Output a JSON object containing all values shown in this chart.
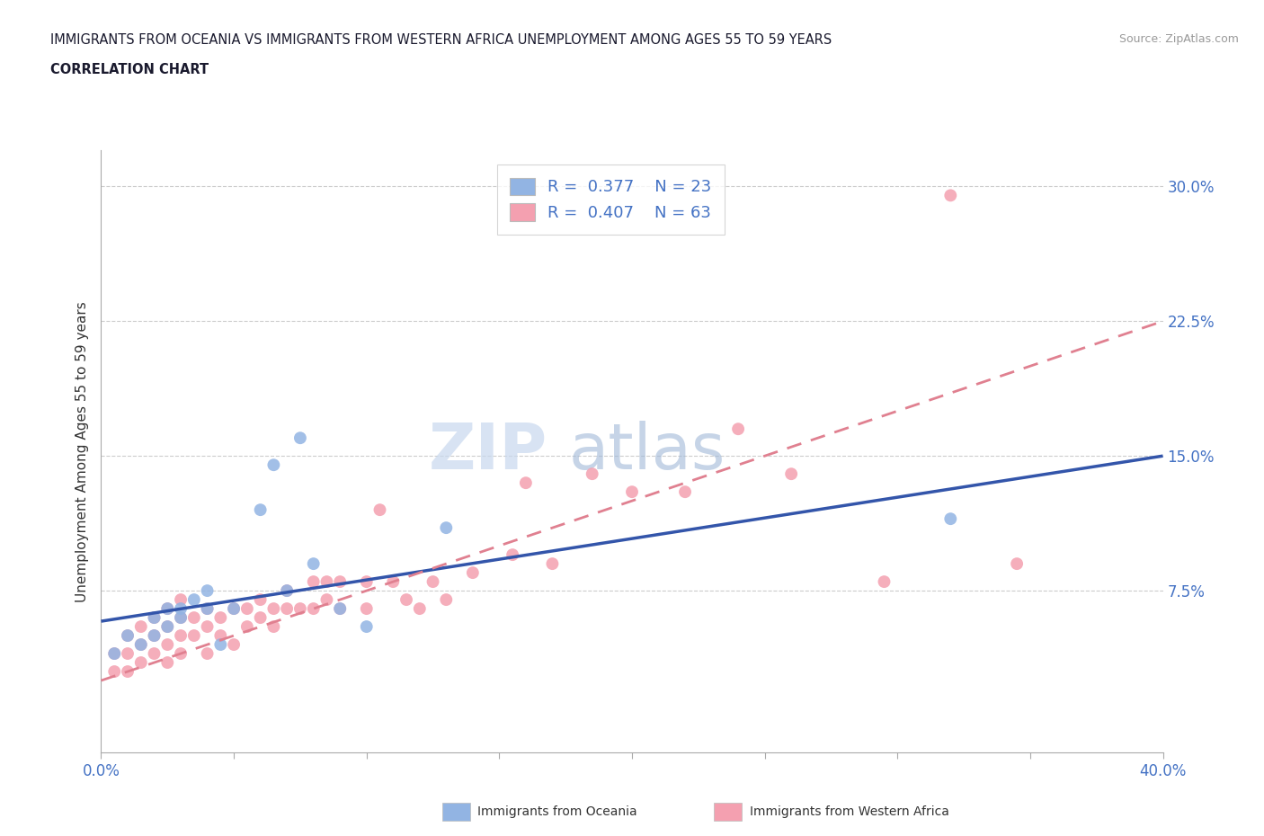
{
  "title_line1": "IMMIGRANTS FROM OCEANIA VS IMMIGRANTS FROM WESTERN AFRICA UNEMPLOYMENT AMONG AGES 55 TO 59 YEARS",
  "title_line2": "CORRELATION CHART",
  "source": "Source: ZipAtlas.com",
  "ylabel": "Unemployment Among Ages 55 to 59 years",
  "xlim": [
    0.0,
    0.4
  ],
  "ylim": [
    -0.015,
    0.32
  ],
  "yticks": [
    0.075,
    0.15,
    0.225,
    0.3
  ],
  "ytick_labels": [
    "7.5%",
    "15.0%",
    "22.5%",
    "30.0%"
  ],
  "xticks": [
    0.0,
    0.05,
    0.1,
    0.15,
    0.2,
    0.25,
    0.3,
    0.35,
    0.4
  ],
  "xtick_labels": [
    "0.0%",
    "",
    "",
    "",
    "",
    "",
    "",
    "",
    "40.0%"
  ],
  "oceania_color": "#92b4e3",
  "western_africa_color": "#f4a0b0",
  "trend_oceania_color": "#3355aa",
  "trend_western_africa_color": "#e08090",
  "legend_R_oceania": "0.377",
  "legend_N_oceania": "23",
  "legend_R_western": "0.407",
  "legend_N_western": "63",
  "watermark_zip": "ZIP",
  "watermark_atlas": "atlas",
  "oceania_x": [
    0.005,
    0.01,
    0.015,
    0.02,
    0.02,
    0.025,
    0.025,
    0.03,
    0.03,
    0.035,
    0.04,
    0.04,
    0.045,
    0.05,
    0.06,
    0.065,
    0.07,
    0.075,
    0.08,
    0.09,
    0.1,
    0.13,
    0.32
  ],
  "oceania_y": [
    0.04,
    0.05,
    0.045,
    0.05,
    0.06,
    0.055,
    0.065,
    0.06,
    0.065,
    0.07,
    0.065,
    0.075,
    0.045,
    0.065,
    0.12,
    0.145,
    0.075,
    0.16,
    0.09,
    0.065,
    0.055,
    0.11,
    0.115
  ],
  "western_africa_x": [
    0.005,
    0.005,
    0.01,
    0.01,
    0.01,
    0.015,
    0.015,
    0.015,
    0.02,
    0.02,
    0.02,
    0.025,
    0.025,
    0.025,
    0.025,
    0.03,
    0.03,
    0.03,
    0.03,
    0.035,
    0.035,
    0.04,
    0.04,
    0.04,
    0.045,
    0.045,
    0.05,
    0.05,
    0.055,
    0.055,
    0.06,
    0.06,
    0.065,
    0.065,
    0.07,
    0.07,
    0.075,
    0.08,
    0.08,
    0.085,
    0.085,
    0.09,
    0.09,
    0.1,
    0.1,
    0.105,
    0.11,
    0.115,
    0.12,
    0.125,
    0.13,
    0.14,
    0.155,
    0.16,
    0.17,
    0.185,
    0.2,
    0.22,
    0.24,
    0.26,
    0.295,
    0.32,
    0.345
  ],
  "western_africa_y": [
    0.03,
    0.04,
    0.03,
    0.04,
    0.05,
    0.035,
    0.045,
    0.055,
    0.04,
    0.05,
    0.06,
    0.035,
    0.045,
    0.055,
    0.065,
    0.04,
    0.05,
    0.06,
    0.07,
    0.05,
    0.06,
    0.04,
    0.055,
    0.065,
    0.05,
    0.06,
    0.045,
    0.065,
    0.055,
    0.065,
    0.06,
    0.07,
    0.055,
    0.065,
    0.065,
    0.075,
    0.065,
    0.065,
    0.08,
    0.07,
    0.08,
    0.065,
    0.08,
    0.065,
    0.08,
    0.12,
    0.08,
    0.07,
    0.065,
    0.08,
    0.07,
    0.085,
    0.095,
    0.135,
    0.09,
    0.14,
    0.13,
    0.13,
    0.165,
    0.14,
    0.08,
    0.295,
    0.09
  ],
  "trend_oceania_x0": 0.0,
  "trend_oceania_y0": 0.058,
  "trend_oceania_x1": 0.4,
  "trend_oceania_y1": 0.15,
  "trend_western_x0": 0.0,
  "trend_western_y0": 0.025,
  "trend_western_x1": 0.4,
  "trend_western_y1": 0.225
}
